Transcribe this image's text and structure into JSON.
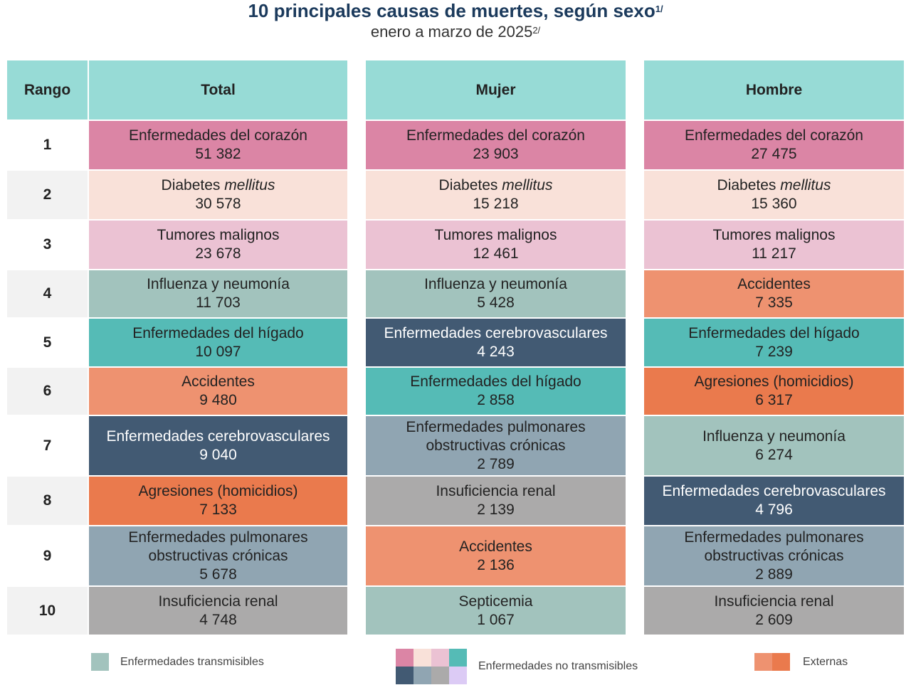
{
  "title": "10 principales causas de muertes, según sexo",
  "title_note": "1/",
  "subtitle": "enero a marzo de 2025",
  "subtitle_note": "2/",
  "headers": {
    "rank": "Rango",
    "total": "Total",
    "mujer": "Mujer",
    "hombre": "Hombre"
  },
  "colors": {
    "heart": "#db85a5",
    "diabetes": "#f9e1d9",
    "tumores": "#ebc2d3",
    "influenza": "#a2c3bd",
    "higado": "#55bbb6",
    "cerebro": "#425a73",
    "accidentes": "#ee9270",
    "agresiones": "#ea7a4d",
    "pulmonares": "#90a5b2",
    "renal": "#abaaaa",
    "septicemia": "#a2c3bd",
    "nt_extra": "#dccbf5"
  },
  "rows": [
    {
      "rank": "1",
      "total": {
        "name": "Enfermedades del corazón",
        "value": "51 382",
        "cat": "heart"
      },
      "mujer": {
        "name": "Enfermedades del corazón",
        "value": "23 903",
        "cat": "heart"
      },
      "hombre": {
        "name": "Enfermedades del corazón",
        "value": "27 475",
        "cat": "heart"
      }
    },
    {
      "rank": "2",
      "total": {
        "name": "Diabetes",
        "italic": "mellitus",
        "value": "30 578",
        "cat": "diabetes"
      },
      "mujer": {
        "name": "Diabetes",
        "italic": "mellitus",
        "value": "15 218",
        "cat": "diabetes"
      },
      "hombre": {
        "name": "Diabetes",
        "italic": "mellitus",
        "value": "15 360",
        "cat": "diabetes"
      }
    },
    {
      "rank": "3",
      "total": {
        "name": "Tumores malignos",
        "value": "23 678",
        "cat": "tumores"
      },
      "mujer": {
        "name": "Tumores malignos",
        "value": "12 461",
        "cat": "tumores"
      },
      "hombre": {
        "name": "Tumores malignos",
        "value": "11 217",
        "cat": "tumores"
      }
    },
    {
      "rank": "4",
      "total": {
        "name": "Influenza y neumonía",
        "value": "11 703",
        "cat": "influenza"
      },
      "mujer": {
        "name": "Influenza y neumonía",
        "value": "5 428",
        "cat": "influenza"
      },
      "hombre": {
        "name": "Accidentes",
        "value": "7 335",
        "cat": "accidentes"
      }
    },
    {
      "rank": "5",
      "total": {
        "name": "Enfermedades del hígado",
        "value": "10 097",
        "cat": "higado"
      },
      "mujer": {
        "name": "Enfermedades cerebrovasculares",
        "value": "4 243",
        "cat": "cerebro"
      },
      "hombre": {
        "name": "Enfermedades del hígado",
        "value": "7 239",
        "cat": "higado"
      }
    },
    {
      "rank": "6",
      "total": {
        "name": "Accidentes",
        "value": "9 480",
        "cat": "accidentes"
      },
      "mujer": {
        "name": "Enfermedades del hígado",
        "value": "2 858",
        "cat": "higado"
      },
      "hombre": {
        "name": "Agresiones (homicidios)",
        "value": "6 317",
        "cat": "agresiones"
      }
    },
    {
      "rank": "7",
      "total": {
        "name": "Enfermedades cerebrovasculares",
        "value": "9 040",
        "cat": "cerebro"
      },
      "mujer": {
        "name": "Enfermedades pulmonares obstructivas crónicas",
        "value": "2 789",
        "cat": "pulmonares"
      },
      "hombre": {
        "name": "Influenza y neumonía",
        "value": "6 274",
        "cat": "influenza"
      }
    },
    {
      "rank": "8",
      "total": {
        "name": "Agresiones (homicidios)",
        "value": "7 133",
        "cat": "agresiones"
      },
      "mujer": {
        "name": "Insuficiencia renal",
        "value": "2 139",
        "cat": "renal"
      },
      "hombre": {
        "name": "Enfermedades cerebrovasculares",
        "value": "4 796",
        "cat": "cerebro"
      }
    },
    {
      "rank": "9",
      "total": {
        "name": "Enfermedades pulmonares obstructivas crónicas",
        "value": "5 678",
        "cat": "pulmonares"
      },
      "mujer": {
        "name": "Accidentes",
        "value": "2 136",
        "cat": "accidentes"
      },
      "hombre": {
        "name": "Enfermedades pulmonares obstructivas crónicas",
        "value": "2 889",
        "cat": "pulmonares"
      }
    },
    {
      "rank": "10",
      "total": {
        "name": "Insuficiencia renal",
        "value": "4 748",
        "cat": "renal"
      },
      "mujer": {
        "name": "Septicemia",
        "value": "1 067",
        "cat": "septicemia"
      },
      "hombre": {
        "name": "Insuficiencia renal",
        "value": "2 609",
        "cat": "renal"
      }
    }
  ],
  "legend": {
    "transmisibles": "Enfermedades transmisibles",
    "no_transmisibles": "Enfermedades no transmisibles",
    "externas": "Externas"
  }
}
